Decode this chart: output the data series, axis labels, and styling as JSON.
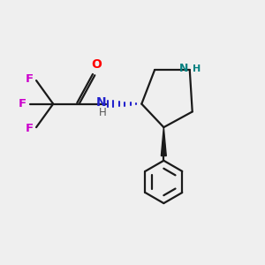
{
  "bg_color": "#efefef",
  "bond_color": "#1a1a1a",
  "O_color": "#ff0000",
  "N_amide_color": "#2222cc",
  "N_ring_color": "#008080",
  "F_color": "#cc00cc",
  "H_color": "#555555",
  "lw": 1.6,
  "fig_w": 3.0,
  "fig_h": 3.0,
  "dpi": 100,
  "xlim": [
    0,
    10
  ],
  "ylim": [
    0,
    10
  ]
}
